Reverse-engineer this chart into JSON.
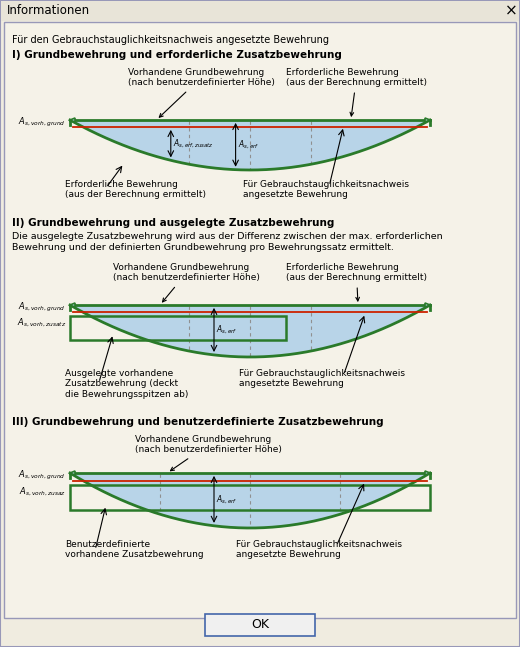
{
  "title": "Informationen",
  "bg_color": "#f0ece0",
  "inner_bg": "#f5f2e8",
  "blue_fill": "#b8d4e8",
  "green_color": "#2a7a2a",
  "red_line_color": "#cc2200",
  "dashed_color": "#909090",
  "header_text": "Für den Gebrauchstauglichkeitsnachweis angesetzte Bewehrung",
  "section1_title": "I) Grundbewehrung und erforderliche Zusatzbewehrung",
  "section2_title": "II) Grundbewehrung und ausgelegte Zusatzbewehrung",
  "section2_desc1": "Die ausgelegte Zusatzbewehrung wird aus der Differenz zwischen der max. erforderlichen",
  "section2_desc2": "Bewehrung und der definierten Grundbewehrung pro Bewehrungssatz ermittelt.",
  "section3_title": "III) Grundbewehrung und benutzerdefinierte Zusatzbewehrung",
  "ok_button": "OK",
  "title_bar_color": "#e8e4d8",
  "window_border": "#9898b8",
  "btn_border": "#4466aa"
}
